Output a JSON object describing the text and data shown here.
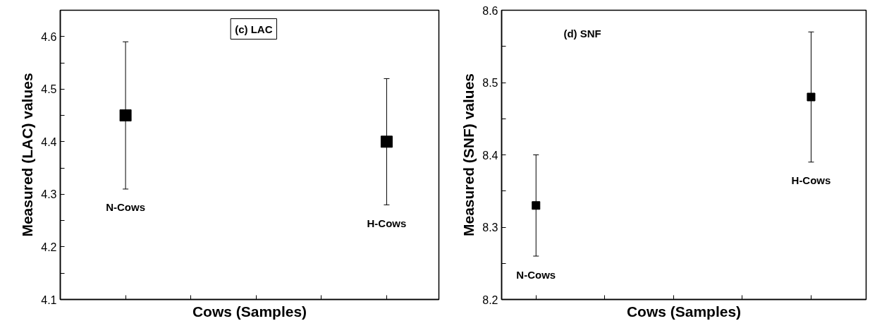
{
  "chart_data": [
    {
      "type": "scatter",
      "xlabel": "Cows (Samples)",
      "ylabel": "Measured (LAC) values",
      "categories": [
        null,
        null
      ],
      "values": [
        4.45,
        4.4
      ],
      "errors": [
        0.14,
        0.12
      ],
      "color": "#000000",
      "marker": "square",
      "ylim": [
        4.1,
        4.65
      ],
      "yticks": [
        4.1,
        {
          "value": 4.15,
          "label": null
        },
        4.2,
        {
          "value": 4.25,
          "label": null
        },
        4.3,
        {
          "value": 4.35,
          "label": null
        },
        4.4,
        {
          "value": 4.45,
          "label": null
        },
        4.5,
        {
          "value": 4.55,
          "label": null
        },
        4.6
      ],
      "tick_labels": "y",
      "grid": false,
      "annotations": [
        "(c) LAC",
        "N-Cows",
        "H-Cows"
      ]
    },
    {
      "type": "scatter",
      "xlabel": "Cows (Samples)",
      "ylabel": "Measured (SNF) values",
      "categories": [
        null,
        null
      ],
      "values": [
        8.33,
        8.48
      ],
      "errors": [
        0.07,
        0.09
      ],
      "color": "#000000",
      "marker": "square",
      "ylim": [
        8.2,
        8.6
      ],
      "yticks": [
        8.2,
        {
          "value": 8.25,
          "label": null
        },
        8.3,
        {
          "value": 8.35,
          "label": null
        },
        8.4,
        {
          "value": 8.45,
          "label": null
        },
        8.5,
        {
          "value": 8.55,
          "label": null
        },
        8.6
      ],
      "tick_labels": "y",
      "grid": false,
      "annotations": [
        "(d) SNF",
        "N-Cows",
        "H-Cows"
      ]
    }
  ]
}
